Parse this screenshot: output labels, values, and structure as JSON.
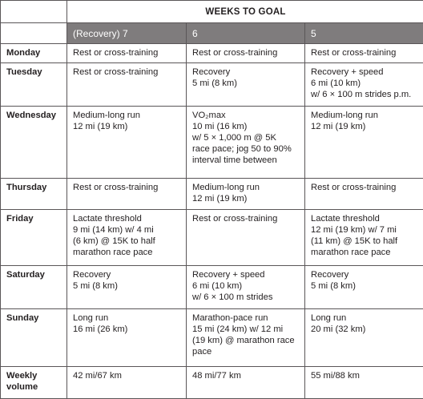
{
  "table": {
    "group_header": "WEEKS TO GOAL",
    "columns": [
      "(Recovery) 7",
      "6",
      "5"
    ],
    "rows": [
      {
        "day": "Monday",
        "cells": [
          [
            "Rest or cross-training"
          ],
          [
            "Rest or cross-training"
          ],
          [
            "Rest or cross-training"
          ]
        ]
      },
      {
        "day": "Tuesday",
        "cells": [
          [
            "Rest or cross-training"
          ],
          [
            "Recovery",
            "5 mi (8 km)"
          ],
          [
            "Recovery + speed",
            "6 mi (10 km)",
            "w/ 6 × 100 m strides p.m."
          ]
        ]
      },
      {
        "day": "Wednesday",
        "cells": [
          [
            "Medium-long run",
            "12 mi (19 km)"
          ],
          [
            "VO₂max",
            "10 mi (16 km)",
            "w/ 5 × 1,000 m @ 5K",
            "race pace; jog 50 to 90%",
            "interval time between"
          ],
          [
            "Medium-long run",
            "12 mi (19 km)"
          ]
        ]
      },
      {
        "day": "Thursday",
        "cells": [
          [
            "Rest or cross-training"
          ],
          [
            "Medium-long run",
            "12 mi (19 km)"
          ],
          [
            "Rest or cross-training"
          ]
        ]
      },
      {
        "day": "Friday",
        "cells": [
          [
            "Lactate threshold",
            "9 mi (14 km) w/ 4 mi",
            "(6 km) @ 15K to half",
            "marathon race pace"
          ],
          [
            "Rest or cross-training"
          ],
          [
            "Lactate threshold",
            "12 mi (19 km) w/ 7 mi",
            "(11 km) @ 15K to half",
            "marathon race pace"
          ]
        ]
      },
      {
        "day": "Saturday",
        "cells": [
          [
            "Recovery",
            "5 mi (8 km)"
          ],
          [
            "Recovery + speed",
            "6 mi (10 km)",
            "w/ 6 × 100 m strides"
          ],
          [
            "Recovery",
            "5 mi (8 km)"
          ]
        ]
      },
      {
        "day": "Sunday",
        "cells": [
          [
            "Long run",
            "16 mi (26 km)"
          ],
          [
            "Marathon-pace run",
            "15 mi (24 km) w/ 12 mi",
            "(19 km) @ marathon race",
            "pace"
          ],
          [
            "Long run",
            "20 mi (32 km)"
          ]
        ]
      },
      {
        "day": "Weekly volume",
        "day_lines": [
          "Weekly",
          "volume"
        ],
        "cells": [
          [
            "42 mi/67 km"
          ],
          [
            "48 mi/77 km"
          ],
          [
            "55 mi/88 km"
          ]
        ]
      }
    ]
  }
}
